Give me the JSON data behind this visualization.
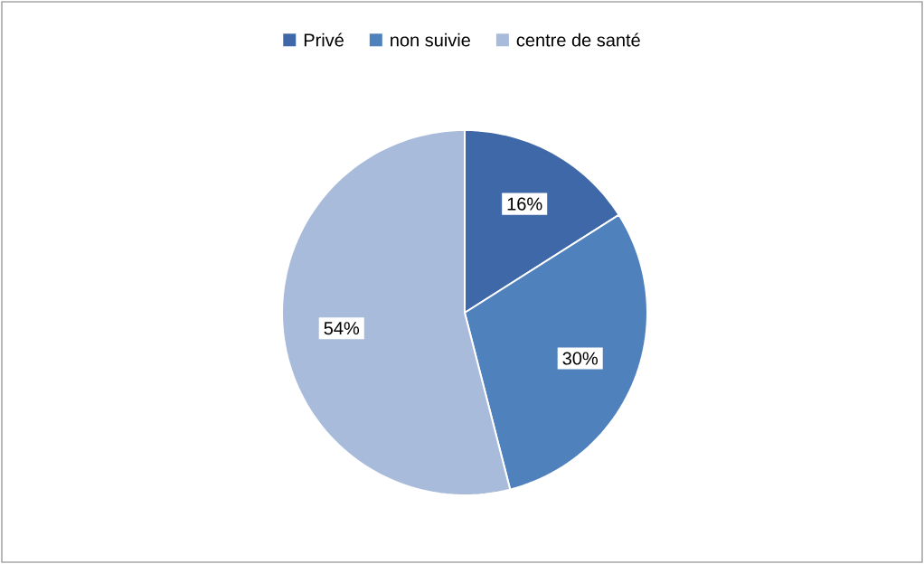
{
  "chart_data": {
    "type": "pie",
    "categories": [
      "Privé",
      "non suivie",
      "centre de santé"
    ],
    "values": [
      16,
      30,
      54
    ],
    "colors": [
      "#3e68a8",
      "#4f81bd",
      "#a9bbdb"
    ],
    "value_labels": [
      "16%",
      "30%",
      "54%"
    ],
    "legend": "top"
  }
}
